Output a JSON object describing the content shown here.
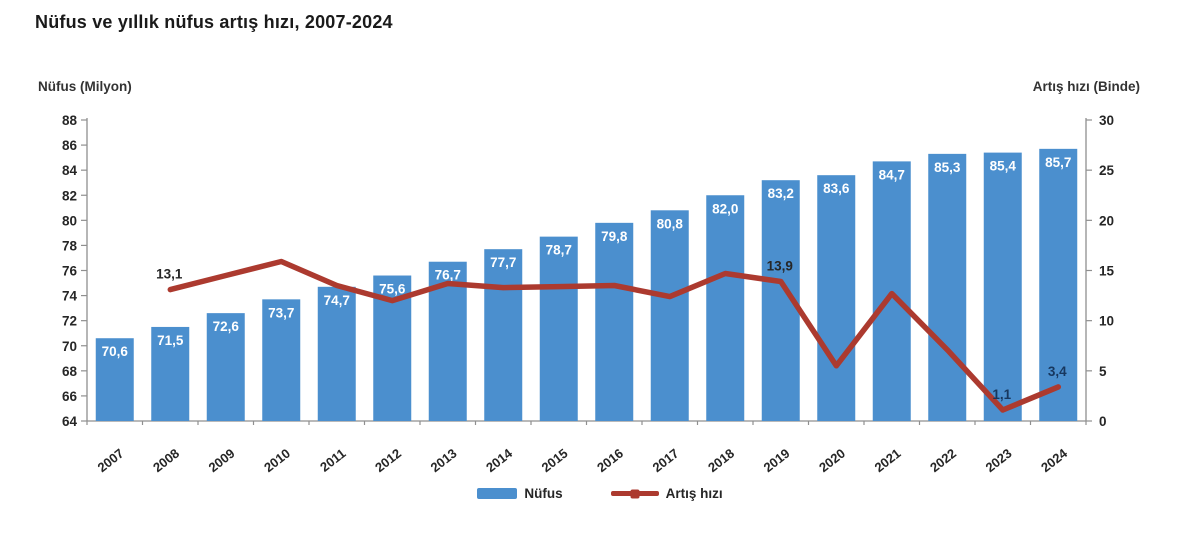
{
  "title": "Nüfus ve yıllık nüfus artış hızı, 2007-2024",
  "chart_data": {
    "type": "bar",
    "title": "Nüfus ve yıllık nüfus artış hızı, 2007-2024",
    "categories": [
      "2007",
      "2008",
      "2009",
      "2010",
      "2011",
      "2012",
      "2013",
      "2014",
      "2015",
      "2016",
      "2017",
      "2018",
      "2019",
      "2020",
      "2021",
      "2022",
      "2023",
      "2024"
    ],
    "series": [
      {
        "name": "Nüfus",
        "type": "bar",
        "axis": "left",
        "values": [
          70.6,
          71.5,
          72.6,
          73.7,
          74.7,
          75.6,
          76.7,
          77.7,
          78.7,
          79.8,
          80.8,
          82.0,
          83.2,
          83.6,
          84.7,
          85.3,
          85.4,
          85.7
        ]
      },
      {
        "name": "Artış hızı",
        "type": "line",
        "axis": "right",
        "values": [
          null,
          13.1,
          14.5,
          15.9,
          13.5,
          12.0,
          13.7,
          13.3,
          13.4,
          13.5,
          12.4,
          14.7,
          13.9,
          5.5,
          12.7,
          7.1,
          1.1,
          3.4
        ],
        "labeled_points": [
          {
            "category": "2008",
            "text": "13,1",
            "color": "#262626"
          },
          {
            "category": "2019",
            "text": "13,9",
            "color": "#262626"
          },
          {
            "category": "2023",
            "text": "1,1",
            "color": "#17375e"
          },
          {
            "category": "2024",
            "text": "3,4",
            "color": "#17375e"
          }
        ]
      }
    ],
    "left_axis": {
      "title": "Nüfus (Milyon)",
      "min": 64,
      "max": 88,
      "step": 2
    },
    "right_axis": {
      "title": "Artış hızı (Binde)",
      "min": 0,
      "max": 30,
      "step": 5
    },
    "legend": [
      {
        "label": "Nüfus",
        "type": "bar"
      },
      {
        "label": "Artış hızı",
        "type": "line"
      }
    ],
    "legend_position": "bottom-center",
    "grid": "off",
    "colors": {
      "bar": "#4b8fce",
      "line": "#ac3a2f",
      "bar_value_label": "#ffffff",
      "axis": "#8f8f8f",
      "tick_text": "#262626"
    }
  }
}
